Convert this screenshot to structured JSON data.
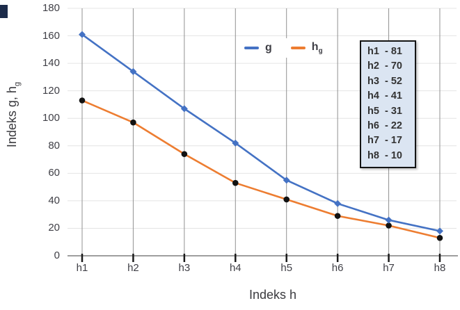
{
  "chart_data": {
    "type": "line",
    "xlabel": "Indeks h",
    "ylabel": {
      "base": "Indeks g, h",
      "sub": "g"
    },
    "categories": [
      "h1",
      "h2",
      "h3",
      "h4",
      "h5",
      "h6",
      "h7",
      "h8"
    ],
    "series": [
      {
        "name": "g",
        "color": "#4472C4",
        "marker": "diamond",
        "marker_color": "#4472C4",
        "values": [
          161,
          134,
          107,
          82,
          55,
          38,
          26,
          18
        ]
      },
      {
        "name": "hg",
        "label_base": "h",
        "label_sub": "g",
        "color": "#ED7D31",
        "marker": "circle",
        "marker_color": "#121212",
        "values": [
          113,
          97,
          74,
          53,
          41,
          29,
          22,
          13
        ]
      }
    ],
    "y_ticks": [
      0,
      20,
      40,
      60,
      80,
      100,
      120,
      140,
      160,
      180
    ],
    "ylim": [
      0,
      180
    ],
    "grid": {
      "horizontal": true,
      "vertical": true
    },
    "legend_position": "top-center"
  },
  "annotation_box": {
    "background": "#dbe5f2",
    "border_color": "#141414",
    "items": [
      "h1  - 81",
      "h2  - 70",
      "h3  - 52",
      "h4  - 41",
      "h5  - 31",
      "h6  - 22",
      "h7  - 17",
      "h8  - 10"
    ]
  },
  "style": {
    "grid_h": "#e4e4e4",
    "grid_v": "#919191",
    "axis": "#7f7f7f",
    "tick": "#1a1a1a",
    "text": "#3f3f46",
    "corner": "#1c2b4a"
  }
}
